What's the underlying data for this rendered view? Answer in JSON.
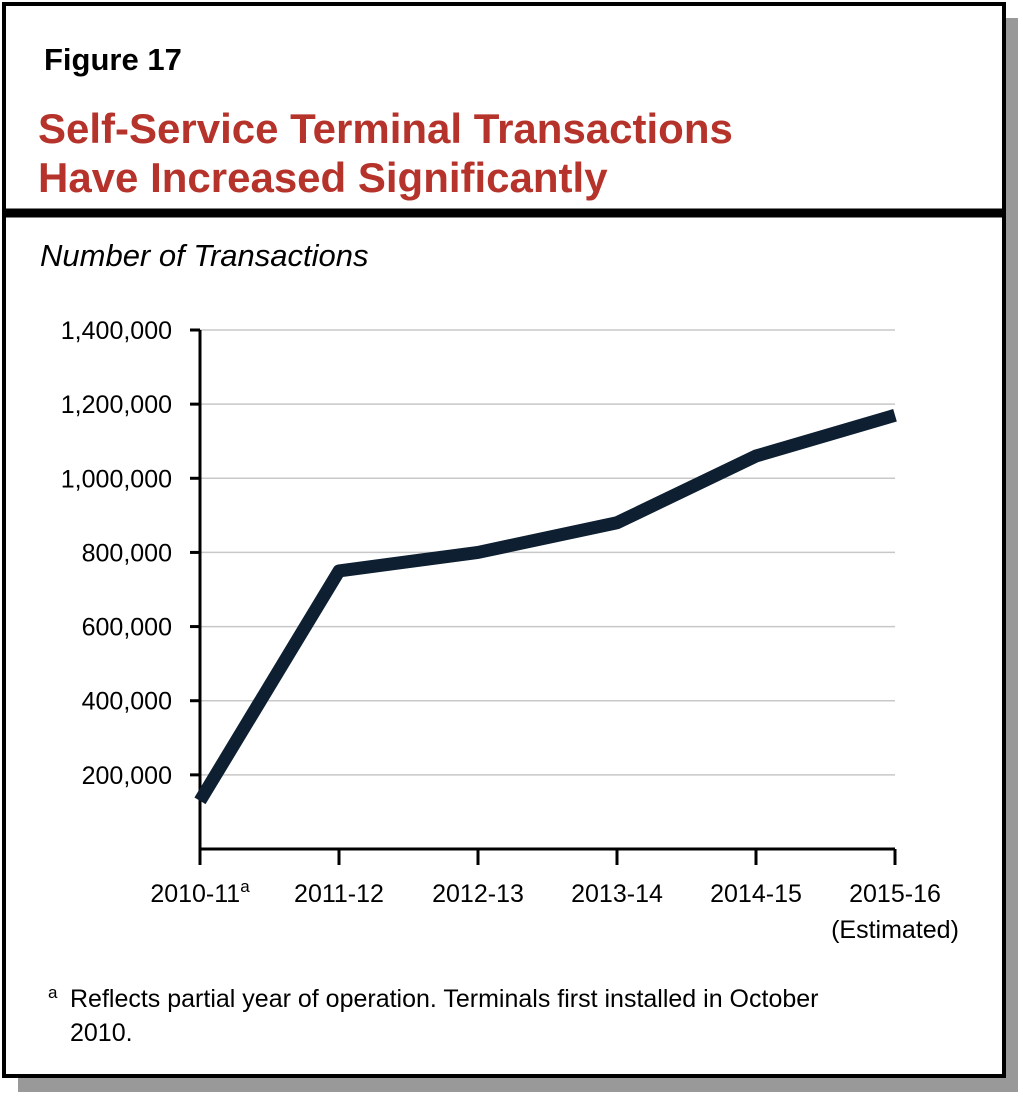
{
  "chart_data": {
    "type": "line",
    "figure_label": "Figure 17",
    "title": [
      "Self-Service Terminal Transactions",
      "Have Increased Significantly"
    ],
    "y_label": "Number of Transactions",
    "categories": [
      "2010-11",
      "2011-12",
      "2012-13",
      "2013-14",
      "2014-15",
      "2015-16"
    ],
    "category_superscripts": [
      "a",
      null,
      null,
      null,
      null,
      null
    ],
    "category_sublabels": [
      null,
      null,
      null,
      null,
      null,
      "(Estimated)"
    ],
    "values": [
      130000,
      750000,
      800000,
      880000,
      1060000,
      1170000
    ],
    "color": "#0d1f30",
    "ylim": [
      0,
      1400000
    ],
    "yticks": [
      {
        "value": 200000,
        "label": "200,000"
      },
      {
        "value": 400000,
        "label": "400,000"
      },
      {
        "value": 600000,
        "label": "600,000"
      },
      {
        "value": 800000,
        "label": "800,000"
      },
      {
        "value": 1000000,
        "label": "1,000,000"
      },
      {
        "value": 1200000,
        "label": "1,200,000"
      },
      {
        "value": 1400000,
        "label": "1,400,000"
      }
    ],
    "grid": true,
    "footnote": {
      "marker": "a",
      "text": "Reflects partial year of operation. Terminals first installed in October 2010."
    }
  }
}
